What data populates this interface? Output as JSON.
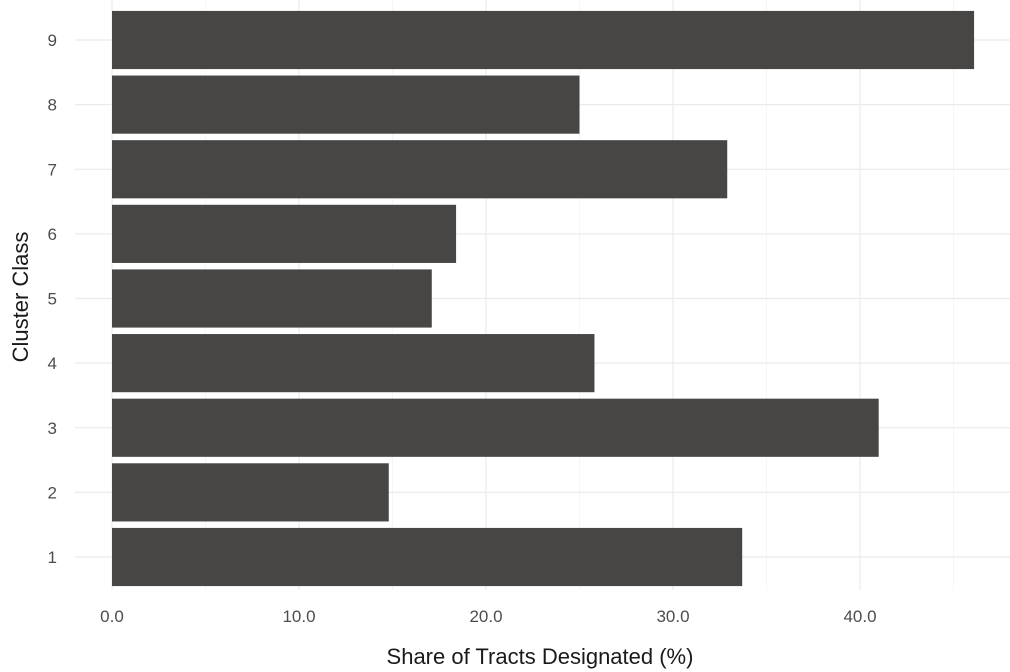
{
  "chart_data": {
    "type": "bar",
    "orientation": "horizontal",
    "categories": [
      "1",
      "2",
      "3",
      "4",
      "5",
      "6",
      "7",
      "8",
      "9"
    ],
    "values": [
      33.7,
      14.8,
      41.0,
      25.8,
      17.1,
      18.4,
      32.9,
      25.0,
      46.1
    ],
    "xlabel": "Share of Tracts Designated (%)",
    "ylabel": "Cluster Class",
    "xlim": [
      0,
      48
    ],
    "xticks": [
      0,
      10,
      20,
      30,
      40
    ],
    "xtick_labels": [
      "0.0",
      "10.0",
      "20.0",
      "30.0",
      "40.0"
    ],
    "bar_color": "#474645",
    "grid": true,
    "legend": "none"
  }
}
